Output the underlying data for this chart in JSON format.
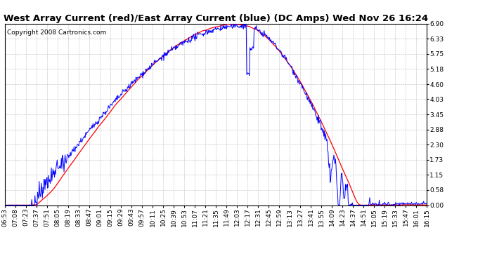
{
  "title": "West Array Current (red)/East Array Current (blue) (DC Amps) Wed Nov 26 16:24",
  "copyright": "Copyright 2008 Cartronics.com",
  "ylim": [
    0.0,
    6.9
  ],
  "yticks": [
    0.0,
    0.58,
    1.15,
    1.73,
    2.3,
    2.88,
    3.45,
    4.03,
    4.6,
    5.18,
    5.75,
    6.33,
    6.9
  ],
  "x_labels": [
    "06:53",
    "07:08",
    "07:23",
    "07:37",
    "07:51",
    "08:05",
    "08:19",
    "08:33",
    "08:47",
    "09:01",
    "09:15",
    "09:29",
    "09:43",
    "09:57",
    "10:11",
    "10:25",
    "10:39",
    "10:53",
    "11:07",
    "11:21",
    "11:35",
    "11:49",
    "12:03",
    "12:17",
    "12:31",
    "12:45",
    "12:59",
    "13:13",
    "13:27",
    "13:41",
    "13:55",
    "14:09",
    "14:23",
    "14:37",
    "14:51",
    "15:05",
    "15:19",
    "15:33",
    "15:47",
    "16:01",
    "16:15"
  ],
  "background_color": "#ffffff",
  "grid_color": "#bbbbbb",
  "red_color": "#ff0000",
  "blue_color": "#0000ff",
  "title_fontsize": 9.5,
  "copyright_fontsize": 6.5,
  "tick_fontsize": 6.5
}
